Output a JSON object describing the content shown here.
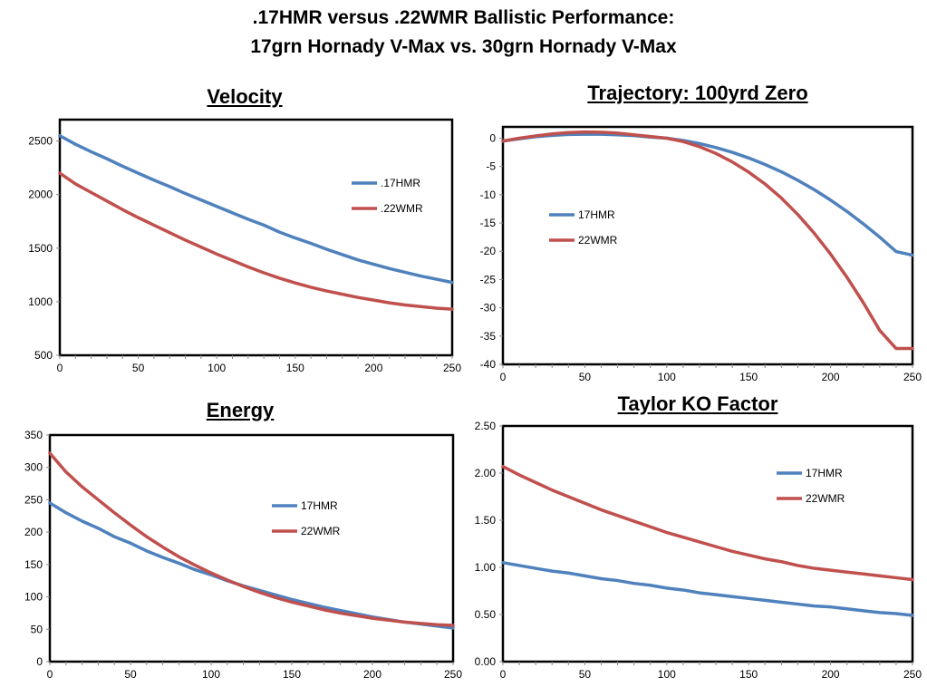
{
  "title_line1": ".17HMR versus .22WMR Ballistic Performance:",
  "title_line2": "17grn Hornady V-Max vs. 30grn Hornady V-Max",
  "colors": {
    "hmr": "#4f81bd",
    "wmr": "#c0504d"
  },
  "chart_data": [
    {
      "type": "line",
      "title": "Velocity",
      "xlabel": "",
      "ylabel": "",
      "x": [
        0,
        10,
        20,
        30,
        40,
        50,
        60,
        70,
        80,
        90,
        100,
        110,
        120,
        130,
        140,
        150,
        160,
        170,
        180,
        190,
        200,
        210,
        220,
        230,
        240,
        250
      ],
      "series": [
        {
          "name": ".17HMR",
          "values": [
            2550,
            2470,
            2400,
            2335,
            2265,
            2200,
            2135,
            2075,
            2010,
            1950,
            1890,
            1830,
            1770,
            1715,
            1650,
            1595,
            1545,
            1490,
            1440,
            1390,
            1350,
            1310,
            1275,
            1240,
            1210,
            1180
          ]
        },
        {
          "name": ".22WMR",
          "values": [
            2200,
            2100,
            2020,
            1940,
            1860,
            1785,
            1715,
            1645,
            1575,
            1510,
            1445,
            1385,
            1325,
            1270,
            1220,
            1175,
            1135,
            1100,
            1070,
            1040,
            1015,
            990,
            970,
            955,
            940,
            930
          ]
        }
      ],
      "xlim": [
        0,
        250
      ],
      "xticks": [
        0,
        50,
        100,
        150,
        200,
        250
      ],
      "ylim": [
        500,
        2700
      ],
      "yticks": [
        500,
        1000,
        1500,
        2000,
        2500
      ],
      "legend": "right"
    },
    {
      "type": "line",
      "title": "Trajectory: 100yrd Zero",
      "xlabel": "",
      "ylabel": "",
      "x": [
        0,
        10,
        20,
        30,
        40,
        50,
        60,
        70,
        80,
        90,
        100,
        110,
        120,
        130,
        140,
        150,
        160,
        170,
        180,
        190,
        200,
        210,
        220,
        230,
        240,
        250
      ],
      "series": [
        {
          "name": "17HMR",
          "values": [
            -0.5,
            -0.1,
            0.25,
            0.5,
            0.65,
            0.7,
            0.7,
            0.6,
            0.45,
            0.2,
            0,
            -0.4,
            -0.95,
            -1.65,
            -2.5,
            -3.5,
            -4.65,
            -5.95,
            -7.45,
            -9.1,
            -10.95,
            -12.95,
            -15.15,
            -17.5,
            -20.05,
            -20.7
          ]
        },
        {
          "name": "22WMR",
          "values": [
            -0.5,
            0,
            0.4,
            0.75,
            1.0,
            1.1,
            1.05,
            0.9,
            0.6,
            0.3,
            0,
            -0.6,
            -1.5,
            -2.7,
            -4.2,
            -6.0,
            -8.1,
            -10.6,
            -13.5,
            -16.8,
            -20.5,
            -24.6,
            -29.1,
            -34.0,
            -37.2,
            -37.2
          ]
        }
      ],
      "xlim": [
        0,
        250
      ],
      "xticks": [
        0,
        50,
        100,
        150,
        200,
        250
      ],
      "ylim": [
        -40,
        2
      ],
      "yticks": [
        0,
        -5,
        -10,
        -15,
        -20,
        -25,
        -30,
        -35,
        -40
      ],
      "legend": "left"
    },
    {
      "type": "line",
      "title": "Energy",
      "xlabel": "",
      "ylabel": "",
      "x": [
        0,
        10,
        20,
        30,
        40,
        50,
        60,
        70,
        80,
        90,
        100,
        110,
        120,
        130,
        140,
        150,
        160,
        170,
        180,
        190,
        200,
        210,
        220,
        230,
        240,
        250
      ],
      "series": [
        {
          "name": "17HMR",
          "values": [
            245,
            230,
            217,
            206,
            193,
            183,
            171,
            161,
            152,
            142,
            134,
            125,
            117,
            110,
            103,
            96,
            90,
            84,
            79,
            74,
            69,
            65,
            61,
            58,
            55,
            52
          ]
        },
        {
          "name": "22WMR",
          "values": [
            322,
            293,
            270,
            250,
            230,
            211,
            193,
            177,
            162,
            149,
            137,
            126,
            116,
            107,
            99,
            92,
            86,
            80,
            75,
            71,
            67,
            64,
            61,
            59,
            57,
            56
          ]
        }
      ],
      "xlim": [
        0,
        250
      ],
      "xticks": [
        0,
        50,
        100,
        150,
        200,
        250
      ],
      "ylim": [
        0,
        350
      ],
      "yticks": [
        0,
        50,
        100,
        150,
        200,
        250,
        300,
        350
      ],
      "legend": "right"
    },
    {
      "type": "line",
      "title": "Taylor KO Factor",
      "xlabel": "",
      "ylabel": "",
      "x": [
        0,
        10,
        20,
        30,
        40,
        50,
        60,
        70,
        80,
        90,
        100,
        110,
        120,
        130,
        140,
        150,
        160,
        170,
        180,
        190,
        200,
        210,
        220,
        230,
        240,
        250
      ],
      "series": [
        {
          "name": "17HMR",
          "values": [
            1.05,
            1.02,
            0.99,
            0.96,
            0.94,
            0.91,
            0.88,
            0.86,
            0.83,
            0.81,
            0.78,
            0.76,
            0.73,
            0.71,
            0.69,
            0.67,
            0.65,
            0.63,
            0.61,
            0.59,
            0.58,
            0.56,
            0.54,
            0.52,
            0.51,
            0.49
          ]
        },
        {
          "name": "22WMR",
          "values": [
            2.07,
            1.98,
            1.9,
            1.82,
            1.75,
            1.68,
            1.61,
            1.55,
            1.49,
            1.43,
            1.37,
            1.32,
            1.27,
            1.22,
            1.17,
            1.13,
            1.09,
            1.06,
            1.02,
            0.99,
            0.97,
            0.95,
            0.93,
            0.91,
            0.89,
            0.87
          ]
        }
      ],
      "xlim": [
        0,
        250
      ],
      "xticks": [
        0,
        50,
        100,
        150,
        200,
        250
      ],
      "ylim": [
        0,
        2.5
      ],
      "yticks": [
        0.0,
        0.5,
        1.0,
        1.5,
        2.0,
        2.5
      ],
      "ytick_labels": [
        "0.00",
        "0.50",
        "1.00",
        "1.50",
        "2.00",
        "2.50"
      ],
      "legend": "right"
    }
  ]
}
